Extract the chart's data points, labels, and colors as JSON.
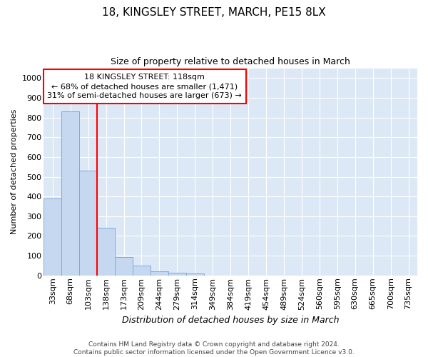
{
  "title1": "18, KINGSLEY STREET, MARCH, PE15 8LX",
  "title2": "Size of property relative to detached houses in March",
  "xlabel": "Distribution of detached houses by size in March",
  "ylabel": "Number of detached properties",
  "bar_labels": [
    "33sqm",
    "68sqm",
    "103sqm",
    "138sqm",
    "173sqm",
    "209sqm",
    "244sqm",
    "279sqm",
    "314sqm",
    "349sqm",
    "384sqm",
    "419sqm",
    "454sqm",
    "489sqm",
    "524sqm",
    "560sqm",
    "595sqm",
    "630sqm",
    "665sqm",
    "700sqm",
    "735sqm"
  ],
  "bar_heights": [
    390,
    830,
    530,
    240,
    95,
    50,
    20,
    15,
    10,
    0,
    0,
    0,
    0,
    0,
    0,
    0,
    0,
    0,
    0,
    0,
    0
  ],
  "bar_color": "#c5d8f0",
  "bar_edge_color": "#7aabdc",
  "bg_color": "#dce8f5",
  "grid_color": "#ffffff",
  "annotation_line1": "18 KINGSLEY STREET: 118sqm",
  "annotation_line2": "← 68% of detached houses are smaller (1,471)",
  "annotation_line3": "31% of semi-detached houses are larger (673) →",
  "footer_text": "Contains HM Land Registry data © Crown copyright and database right 2024.\nContains public sector information licensed under the Open Government Licence v3.0.",
  "ylim": [
    0,
    1050
  ],
  "yticks": [
    0,
    100,
    200,
    300,
    400,
    500,
    600,
    700,
    800,
    900,
    1000
  ],
  "red_line_x": 2.5,
  "title1_fontsize": 11,
  "title2_fontsize": 9,
  "xlabel_fontsize": 9,
  "ylabel_fontsize": 8,
  "tick_fontsize": 8,
  "annot_fontsize": 8,
  "footer_fontsize": 6.5
}
